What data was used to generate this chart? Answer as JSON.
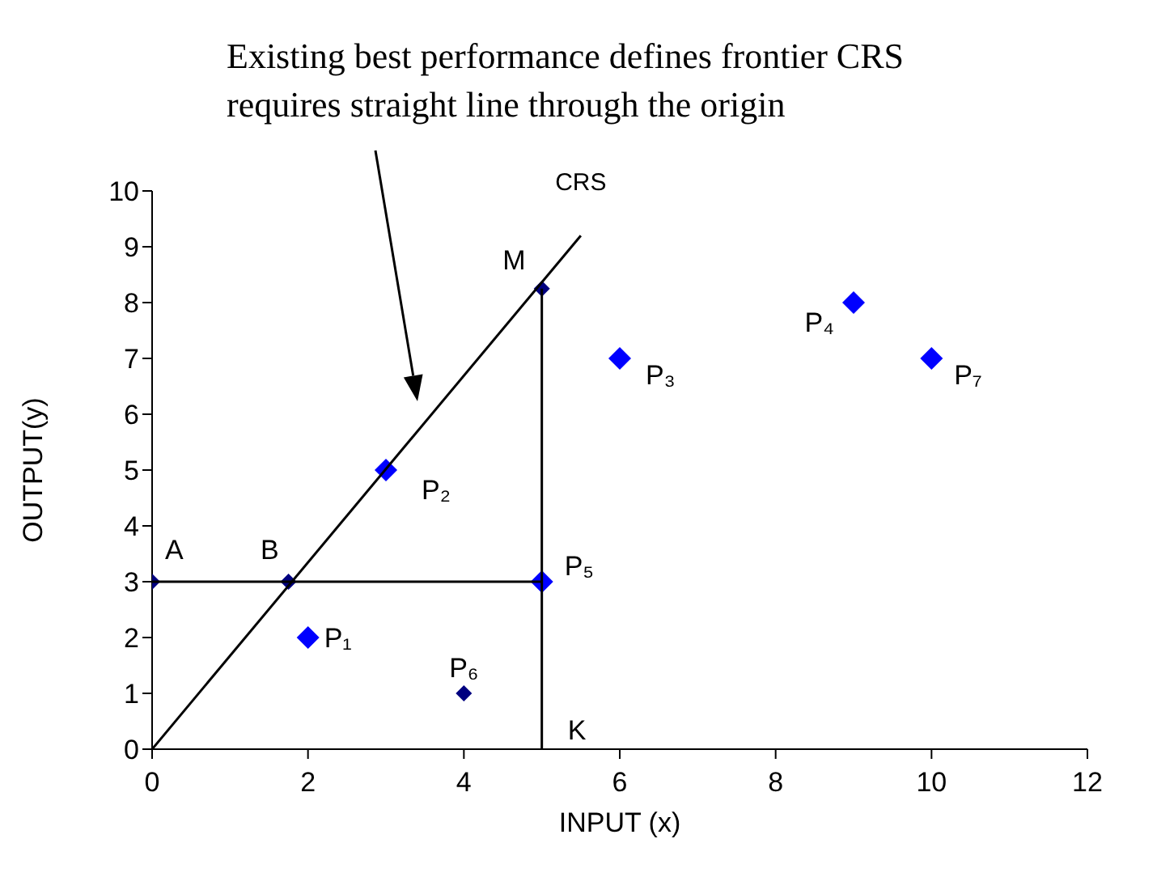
{
  "chart_data": {
    "type": "scatter",
    "xlabel": "INPUT (x)",
    "ylabel": "OUTPUT(y)",
    "xlim": [
      0,
      12
    ],
    "ylim": [
      0,
      10
    ],
    "xticks": [
      0,
      2,
      4,
      6,
      8,
      10,
      12
    ],
    "yticks": [
      0,
      1,
      2,
      3,
      4,
      5,
      6,
      7,
      8,
      9,
      10
    ],
    "marker": "diamond",
    "series": [
      {
        "color": "#0000ff",
        "x": [
          2,
          3,
          6,
          9,
          5,
          10
        ],
        "values": [
          2,
          5,
          7,
          8,
          3,
          7
        ]
      },
      {
        "color": "#000080",
        "x": [
          0,
          1.75,
          5,
          4
        ],
        "values": [
          3,
          3,
          8.25,
          1
        ]
      },
      {
        "type": "line",
        "color": "#000000",
        "marker": "none",
        "x": [
          0,
          5.5
        ],
        "values": [
          0,
          9.2
        ]
      },
      {
        "type": "line",
        "color": "#000000",
        "marker": "none",
        "x": [
          0,
          5
        ],
        "values": [
          3,
          3
        ]
      },
      {
        "type": "line",
        "color": "#000000",
        "marker": "none",
        "x": [
          5,
          5
        ],
        "values": [
          0,
          8.25
        ]
      }
    ],
    "annotations": [
      {
        "text": "A",
        "x": 0,
        "y": 3
      },
      {
        "text": "B",
        "x": 1.75,
        "y": 3
      },
      {
        "text": "M",
        "x": 5,
        "y": 8.25
      },
      {
        "text": "P₁",
        "x": 2,
        "y": 2
      },
      {
        "text": "P₂",
        "x": 3,
        "y": 5
      },
      {
        "text": "P₃",
        "x": 6,
        "y": 7
      },
      {
        "text": "P₄",
        "x": 9,
        "y": 8
      },
      {
        "text": "P₅",
        "x": 5,
        "y": 3
      },
      {
        "text": "P₆",
        "x": 4,
        "y": 1
      },
      {
        "text": "P₇",
        "x": 10,
        "y": 7
      },
      {
        "text": "K",
        "x": 5,
        "y": 0
      },
      {
        "text": "CRS",
        "x": 5.5,
        "y": 9.2
      },
      "Existing best performance defines frontier CRS\nrequires straight line through the origin"
    ]
  }
}
